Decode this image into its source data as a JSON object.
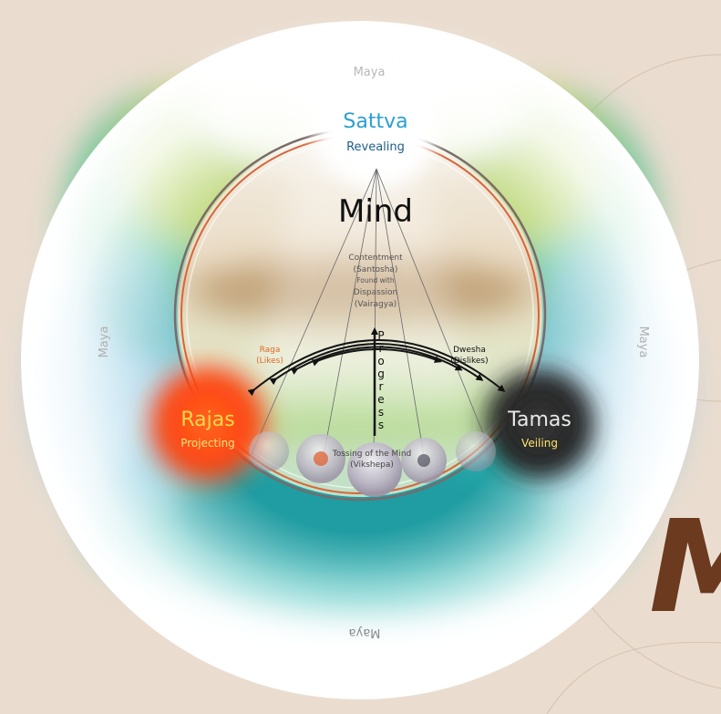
{
  "maya_labels": {
    "top": "Maya",
    "left": "Maya",
    "right": "Maya",
    "bottom": "Maya"
  },
  "sattva": {
    "title": "Sattva",
    "subtitle": "Revealing"
  },
  "rajas": {
    "title": "Rajas",
    "subtitle": "Projecting"
  },
  "tamas": {
    "title": "Tamas",
    "subtitle": "Veiling"
  },
  "mind": {
    "title": "Mind"
  },
  "contentment": {
    "line1": "Contentment",
    "line2": "(Santosha)",
    "line3": "Found with",
    "line4": "Dispassion",
    "line5": "(Vairagya)"
  },
  "progress": {
    "letters": [
      "P",
      "r",
      "o",
      "g",
      "r",
      "e",
      "s",
      "s"
    ]
  },
  "raga": {
    "line1": "Raga",
    "line2": "(Likes)"
  },
  "dwesha": {
    "line1": "Dwesha",
    "line2": "(Dislikes)"
  },
  "tossing": {
    "line1": "Tossing of the Mind",
    "line2": "(Vikshepa)"
  },
  "corner_letter": "M",
  "colors": {
    "background": "#eaddd0",
    "sattva_text": "#2a9fd0",
    "rajas_text": "#ffd84a",
    "tamas_text": "#ffe46a",
    "raga_text": "#e06a2a",
    "ring_orange": "#d8653a",
    "accent_brown": "#6b3a1f"
  }
}
